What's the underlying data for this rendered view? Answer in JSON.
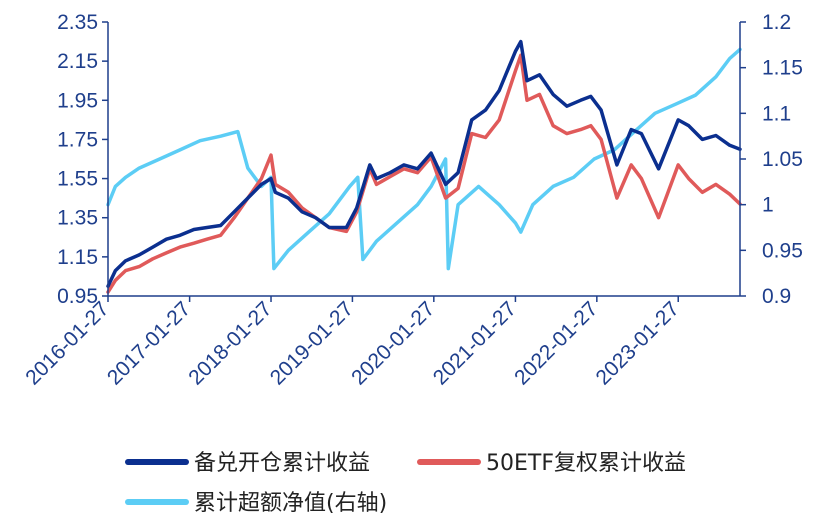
{
  "chart_data": {
    "type": "line",
    "xlabel": "",
    "ylabel_left": "",
    "ylabel_right": "",
    "x_range": [
      "2016-01-27",
      "2023-10-31"
    ],
    "x_ticks": [
      "2016-01-27",
      "2017-01-27",
      "2018-01-27",
      "2019-01-27",
      "2020-01-27",
      "2021-01-27",
      "2022-01-27",
      "2023-01-27"
    ],
    "y_left_ticks": [
      "0.95",
      "1.15",
      "1.35",
      "1.55",
      "1.75",
      "1.95",
      "2.15",
      "2.35"
    ],
    "y_left_range": [
      0.95,
      2.35
    ],
    "y_right_ticks": [
      "0.9",
      "0.95",
      "1",
      "1.05",
      "1.1",
      "1.15",
      "1.2"
    ],
    "y_right_range": [
      0.9,
      1.2
    ],
    "grid": false,
    "legend_position": "bottom",
    "series": [
      {
        "name": "备兑开仓累计收益",
        "axis": "left",
        "color": "#0b2f8f",
        "points": [
          [
            "2016-01-27",
            1.0
          ],
          [
            "2016-02-29",
            1.08
          ],
          [
            "2016-04-15",
            1.13
          ],
          [
            "2016-06-15",
            1.16
          ],
          [
            "2016-08-15",
            1.2
          ],
          [
            "2016-10-15",
            1.24
          ],
          [
            "2016-12-15",
            1.26
          ],
          [
            "2017-02-15",
            1.29
          ],
          [
            "2017-04-15",
            1.3
          ],
          [
            "2017-06-15",
            1.31
          ],
          [
            "2017-08-15",
            1.38
          ],
          [
            "2017-10-15",
            1.45
          ],
          [
            "2017-12-15",
            1.52
          ],
          [
            "2018-01-27",
            1.55
          ],
          [
            "2018-02-15",
            1.48
          ],
          [
            "2018-04-15",
            1.45
          ],
          [
            "2018-06-15",
            1.38
          ],
          [
            "2018-08-15",
            1.35
          ],
          [
            "2018-10-15",
            1.3
          ],
          [
            "2018-12-31",
            1.3
          ],
          [
            "2019-02-15",
            1.4
          ],
          [
            "2019-04-15",
            1.62
          ],
          [
            "2019-05-15",
            1.55
          ],
          [
            "2019-07-15",
            1.58
          ],
          [
            "2019-09-15",
            1.62
          ],
          [
            "2019-11-15",
            1.6
          ],
          [
            "2020-01-15",
            1.68
          ],
          [
            "2020-03-20",
            1.52
          ],
          [
            "2020-05-15",
            1.58
          ],
          [
            "2020-07-15",
            1.85
          ],
          [
            "2020-09-15",
            1.9
          ],
          [
            "2020-11-15",
            2.0
          ],
          [
            "2021-01-27",
            2.2
          ],
          [
            "2021-02-20",
            2.25
          ],
          [
            "2021-03-20",
            2.05
          ],
          [
            "2021-05-15",
            2.08
          ],
          [
            "2021-07-15",
            1.98
          ],
          [
            "2021-09-15",
            1.92
          ],
          [
            "2021-11-15",
            1.95
          ],
          [
            "2021-12-31",
            1.97
          ],
          [
            "2022-02-15",
            1.9
          ],
          [
            "2022-04-27",
            1.62
          ],
          [
            "2022-06-30",
            1.8
          ],
          [
            "2022-08-15",
            1.78
          ],
          [
            "2022-10-31",
            1.6
          ],
          [
            "2023-01-27",
            1.85
          ],
          [
            "2023-03-15",
            1.82
          ],
          [
            "2023-05-15",
            1.75
          ],
          [
            "2023-07-15",
            1.77
          ],
          [
            "2023-09-15",
            1.72
          ],
          [
            "2023-10-31",
            1.7
          ]
        ]
      },
      {
        "name": "50ETF复权累计收益",
        "axis": "left",
        "color": "#e05a5a",
        "points": [
          [
            "2016-01-27",
            0.97
          ],
          [
            "2016-02-29",
            1.03
          ],
          [
            "2016-04-15",
            1.08
          ],
          [
            "2016-06-15",
            1.1
          ],
          [
            "2016-08-15",
            1.14
          ],
          [
            "2016-10-15",
            1.17
          ],
          [
            "2016-12-15",
            1.2
          ],
          [
            "2017-02-15",
            1.22
          ],
          [
            "2017-04-15",
            1.24
          ],
          [
            "2017-06-15",
            1.26
          ],
          [
            "2017-08-15",
            1.35
          ],
          [
            "2017-10-15",
            1.45
          ],
          [
            "2017-12-15",
            1.55
          ],
          [
            "2018-01-27",
            1.67
          ],
          [
            "2018-02-15",
            1.52
          ],
          [
            "2018-04-15",
            1.48
          ],
          [
            "2018-06-15",
            1.4
          ],
          [
            "2018-08-15",
            1.35
          ],
          [
            "2018-10-15",
            1.3
          ],
          [
            "2018-12-31",
            1.28
          ],
          [
            "2019-02-15",
            1.38
          ],
          [
            "2019-04-15",
            1.6
          ],
          [
            "2019-05-15",
            1.52
          ],
          [
            "2019-07-15",
            1.56
          ],
          [
            "2019-09-15",
            1.6
          ],
          [
            "2019-11-15",
            1.58
          ],
          [
            "2020-01-15",
            1.66
          ],
          [
            "2020-03-20",
            1.45
          ],
          [
            "2020-05-15",
            1.5
          ],
          [
            "2020-07-15",
            1.78
          ],
          [
            "2020-09-15",
            1.76
          ],
          [
            "2020-11-15",
            1.85
          ],
          [
            "2021-01-27",
            2.1
          ],
          [
            "2021-02-20",
            2.18
          ],
          [
            "2021-03-20",
            1.95
          ],
          [
            "2021-05-15",
            1.98
          ],
          [
            "2021-07-15",
            1.82
          ],
          [
            "2021-09-15",
            1.78
          ],
          [
            "2021-11-15",
            1.8
          ],
          [
            "2021-12-31",
            1.82
          ],
          [
            "2022-02-15",
            1.75
          ],
          [
            "2022-04-27",
            1.45
          ],
          [
            "2022-06-30",
            1.62
          ],
          [
            "2022-08-15",
            1.55
          ],
          [
            "2022-10-31",
            1.35
          ],
          [
            "2023-01-27",
            1.62
          ],
          [
            "2023-03-15",
            1.55
          ],
          [
            "2023-05-15",
            1.48
          ],
          [
            "2023-07-15",
            1.52
          ],
          [
            "2023-09-15",
            1.47
          ],
          [
            "2023-10-31",
            1.42
          ]
        ]
      },
      {
        "name": "累计超额净值(右轴)",
        "axis": "right",
        "color": "#5ccdf5",
        "points": [
          [
            "2016-01-27",
            1.0
          ],
          [
            "2016-02-29",
            1.02
          ],
          [
            "2016-04-15",
            1.03
          ],
          [
            "2016-06-15",
            1.04
          ],
          [
            "2016-09-15",
            1.05
          ],
          [
            "2016-12-15",
            1.06
          ],
          [
            "2017-03-15",
            1.07
          ],
          [
            "2017-06-15",
            1.075
          ],
          [
            "2017-08-31",
            1.08
          ],
          [
            "2017-10-15",
            1.04
          ],
          [
            "2017-12-15",
            1.02
          ],
          [
            "2018-01-27",
            1.03
          ],
          [
            "2018-02-09",
            0.93
          ],
          [
            "2018-04-15",
            0.95
          ],
          [
            "2018-07-15",
            0.97
          ],
          [
            "2018-10-15",
            0.99
          ],
          [
            "2019-01-15",
            1.02
          ],
          [
            "2019-02-20",
            1.03
          ],
          [
            "2019-03-15",
            0.94
          ],
          [
            "2019-05-15",
            0.96
          ],
          [
            "2019-08-15",
            0.98
          ],
          [
            "2019-11-15",
            1.0
          ],
          [
            "2020-01-15",
            1.02
          ],
          [
            "2020-03-20",
            1.05
          ],
          [
            "2020-04-01",
            0.93
          ],
          [
            "2020-05-15",
            1.0
          ],
          [
            "2020-08-15",
            1.02
          ],
          [
            "2020-11-15",
            1.0
          ],
          [
            "2021-01-27",
            0.98
          ],
          [
            "2021-02-20",
            0.97
          ],
          [
            "2021-04-15",
            1.0
          ],
          [
            "2021-07-15",
            1.02
          ],
          [
            "2021-10-15",
            1.03
          ],
          [
            "2022-01-15",
            1.05
          ],
          [
            "2022-04-15",
            1.06
          ],
          [
            "2022-07-15",
            1.08
          ],
          [
            "2022-10-15",
            1.1
          ],
          [
            "2023-01-15",
            1.11
          ],
          [
            "2023-04-15",
            1.12
          ],
          [
            "2023-07-15",
            1.14
          ],
          [
            "2023-09-15",
            1.16
          ],
          [
            "2023-10-31",
            1.17
          ]
        ]
      }
    ]
  }
}
